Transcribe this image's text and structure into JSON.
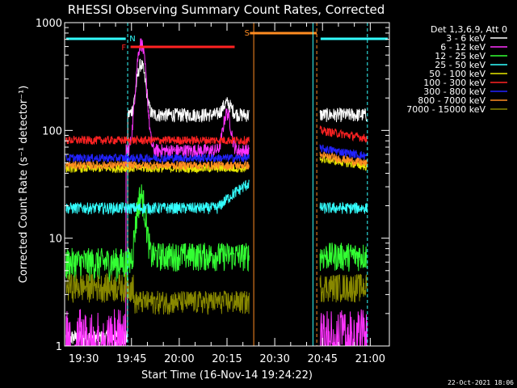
{
  "chart_data": {
    "type": "line",
    "title": "RHESSI Observing Summary Count Rates, Corrected",
    "xlabel": "Start Time (16-Nov-14 19:24:22)",
    "ylabel": "Corrected Count Rate (s⁻¹ detector⁻¹)",
    "y_scale": "log",
    "ylim": [
      1,
      1000
    ],
    "xlim_minutes": [
      19.4,
      21.1
    ],
    "x_ticks": [
      "19:30",
      "19:45",
      "20:00",
      "20:15",
      "20:30",
      "20:45",
      "21:00"
    ],
    "y_ticks": [
      "1",
      "10",
      "100",
      "1000"
    ],
    "legend_header": "Det 1,3,6,9, Att 0",
    "legend_position": "top-right",
    "footer_date": "22-Oct-2021 18:06",
    "series": [
      {
        "name": "3 - 6 keV",
        "color": "#ffffff"
      },
      {
        "name": "6 - 12 keV",
        "color": "#ff33ff"
      },
      {
        "name": "12 - 25 keV",
        "color": "#33ff33"
      },
      {
        "name": "25 - 50 keV",
        "color": "#33ffff"
      },
      {
        "name": "50 - 100 keV",
        "color": "#e8e800"
      },
      {
        "name": "100 - 300 keV",
        "color": "#ff2222"
      },
      {
        "name": "300 - 800 keV",
        "color": "#2222ff"
      },
      {
        "name": "800 - 7000 keV",
        "color": "#ff8c22"
      },
      {
        "name": "7000 - 15000 keV",
        "color": "#888800"
      }
    ],
    "bars": [
      {
        "label": "N",
        "color": "#33ffff"
      },
      {
        "label": "F",
        "color": "#ff2222"
      },
      {
        "label": "S",
        "color": "#ff8c22"
      }
    ]
  }
}
